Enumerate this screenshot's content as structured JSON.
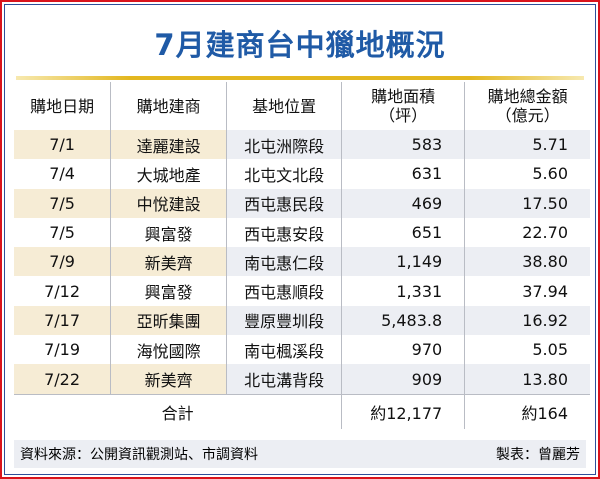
{
  "title": "7月建商台中獵地概況",
  "headers": [
    "購地日期",
    "購地建商",
    "基地位置",
    "購地面積\n（坪）",
    "購地總金額\n（億元）"
  ],
  "rows": [
    [
      "7/1",
      "達麗建設",
      "北屯洲際段",
      "583",
      "5.71"
    ],
    [
      "7/4",
      "大城地產",
      "北屯文北段",
      "631",
      "5.60"
    ],
    [
      "7/5",
      "中悅建設",
      "西屯惠民段",
      "469",
      "17.50"
    ],
    [
      "7/5",
      "興富發",
      "西屯惠安段",
      "651",
      "22.70"
    ],
    [
      "7/9",
      "新美齊",
      "南屯惠仁段",
      "1,149",
      "38.80"
    ],
    [
      "7/12",
      "興富發",
      "西屯惠順段",
      "1,331",
      "37.94"
    ],
    [
      "7/17",
      "亞昕集團",
      "豐原豐圳段",
      "5,483.8",
      "16.92"
    ],
    [
      "7/19",
      "海悅國際",
      "南屯楓溪段",
      "970",
      "5.05"
    ],
    [
      "7/22",
      "新美齊",
      "北屯溝背段",
      "909",
      "13.80"
    ]
  ],
  "total": {
    "label": "合計",
    "area": "約12,177",
    "amount": "約164"
  },
  "footer": {
    "source": "資料來源：公開資訊觀測站、市調資料",
    "author": "製表：曾麗芳"
  },
  "colors": {
    "title": "#1f5aa6",
    "border": "#d9141c",
    "row_highlight": "#f6ecd5",
    "row_shade": "#eceef3"
  }
}
